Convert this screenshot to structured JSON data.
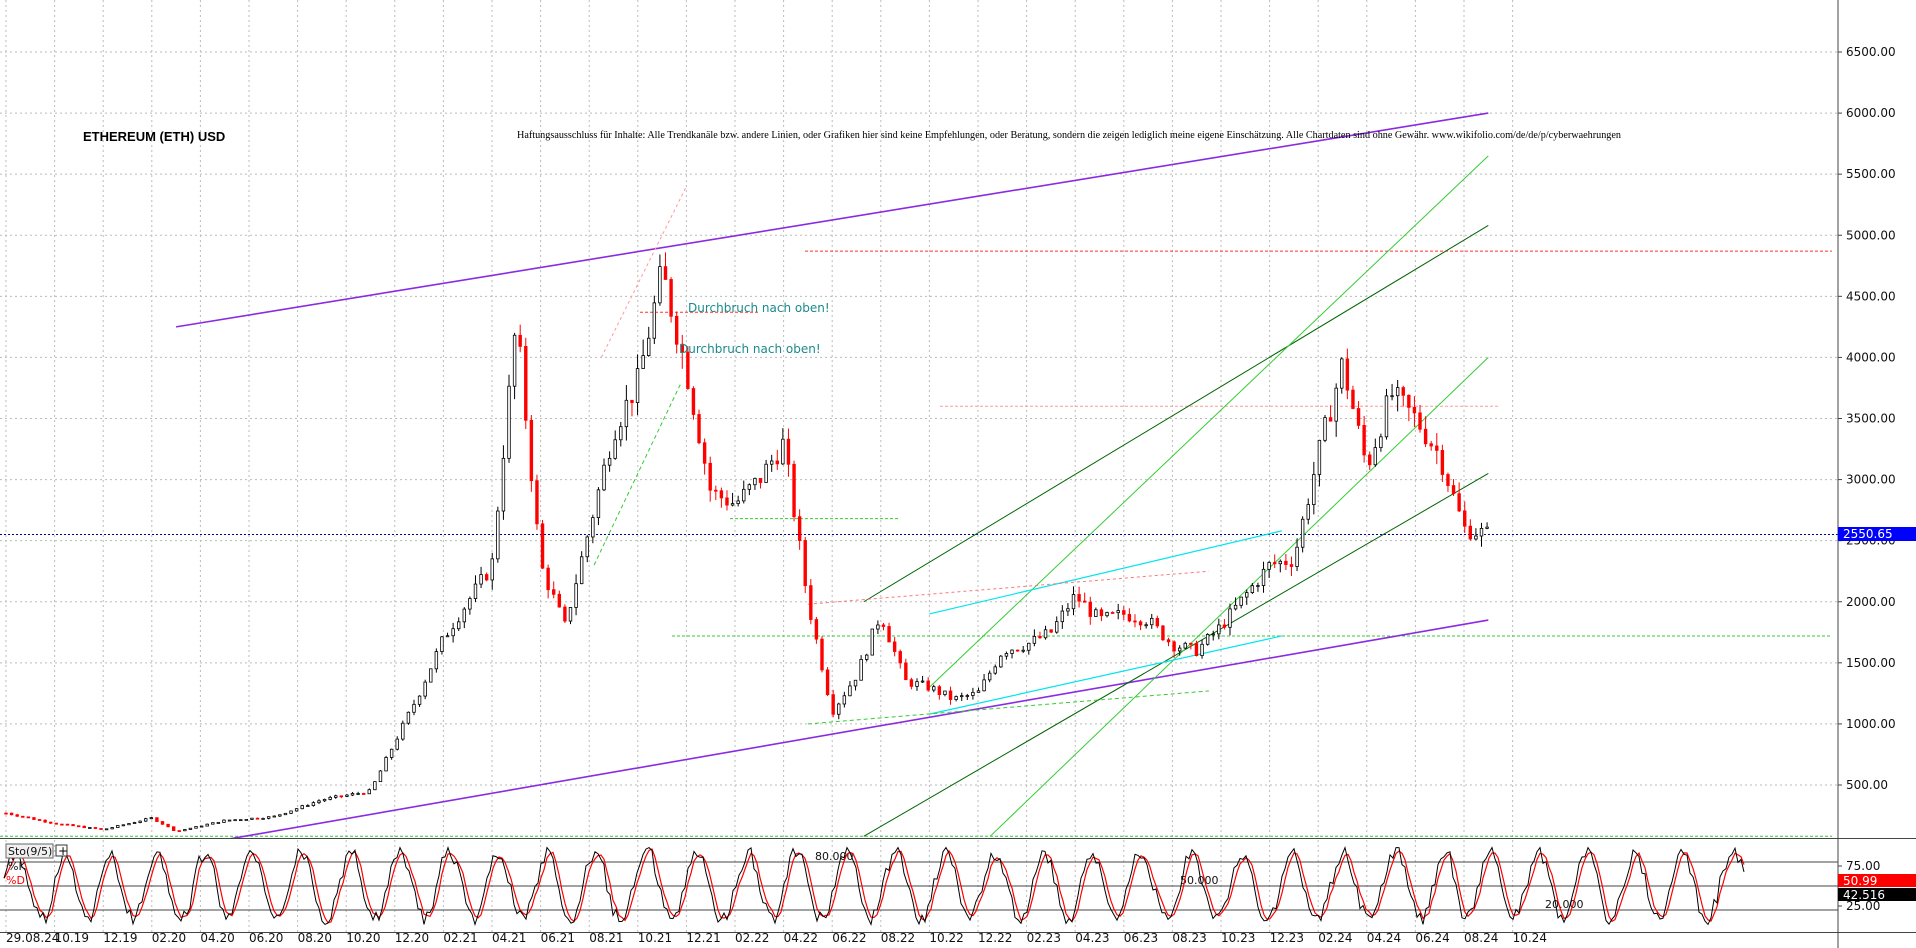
{
  "chart_data": {
    "type": "candlestick",
    "title": "ETHEREUM (ETH) USD",
    "disclaimer": "Haftungsausschluss für Inhalte: Alle Trendkanäle bzw. andere Linien, oder Grafiken hier sind keine Empfehlungen, oder Beratung, sondern die zeigen lediglich meine eigene Einschätzung. Alle Chartdaten sind ohne Gewähr. www.wikifolio.com/de/de/p/cyberwaehrungen",
    "price_axis": {
      "ylim": [
        0,
        6800
      ],
      "ticks": [
        "500.00",
        "1000.00",
        "1500.00",
        "2000.00",
        "2500.00",
        "3000.00",
        "3500.00",
        "4000.00",
        "4500.00",
        "5000.00",
        "5500.00",
        "6000.00",
        "6500.00"
      ],
      "current_price_label": "2550.65",
      "current_price": 2550.65,
      "side": "right"
    },
    "x_axis": {
      "ticks": [
        "29.08.24",
        "10.19",
        "12.19",
        "02.20",
        "04.20",
        "06.20",
        "08.20",
        "10.20",
        "12.20",
        "02.21",
        "04.21",
        "06.21",
        "08.21",
        "10.21",
        "12.21",
        "02.22",
        "04.22",
        "06.22",
        "08.22",
        "10.22",
        "12.22",
        "02.23",
        "04.23",
        "06.23",
        "08.23",
        "10.23",
        "12.23",
        "02.24",
        "04.24",
        "06.24",
        "08.24",
        "10.24"
      ]
    },
    "price_series": {
      "name": "ETH/USD",
      "x": [
        "2019-08",
        "2019-10",
        "2019-12",
        "2020-02",
        "2020-03",
        "2020-05",
        "2020-07",
        "2020-09",
        "2020-11",
        "2021-01",
        "2021-02",
        "2021-04",
        "2021-05",
        "2021-06",
        "2021-07",
        "2021-09",
        "2021-10",
        "2021-11",
        "2021-12",
        "2022-01",
        "2022-02",
        "2022-03",
        "2022-04",
        "2022-05",
        "2022-06",
        "2022-07",
        "2022-08",
        "2022-09",
        "2022-10",
        "2022-11",
        "2022-12",
        "2023-01",
        "2023-02",
        "2023-03",
        "2023-04",
        "2023-05",
        "2023-06",
        "2023-07",
        "2023-08",
        "2023-09",
        "2023-10",
        "2023-11",
        "2023-12",
        "2024-01",
        "2024-02",
        "2024-03",
        "2024-04",
        "2024-05",
        "2024-06",
        "2024-07",
        "2024-08",
        "2024-09"
      ],
      "values": [
        270,
        185,
        135,
        230,
        120,
        210,
        240,
        380,
        450,
        1250,
        1700,
        2300,
        4300,
        2300,
        1800,
        3400,
        3800,
        4700,
        3900,
        2900,
        2800,
        3000,
        3300,
        2000,
        1100,
        1400,
        1900,
        1350,
        1300,
        1200,
        1250,
        1600,
        1650,
        1750,
        2050,
        1850,
        1900,
        1850,
        1650,
        1600,
        1800,
        2050,
        2300,
        2350,
        3200,
        3950,
        3100,
        3700,
        3500,
        3200,
        2600,
        2550
      ]
    },
    "horizontal_levels": [
      {
        "value": 4870,
        "color": "#ff3333"
      },
      {
        "value": 4370,
        "color": "#ff3333"
      },
      {
        "value": 3600,
        "color": "#ff9999"
      },
      {
        "value": 2680,
        "color": "#33cc33"
      },
      {
        "value": 1720,
        "color": "#33cc33"
      },
      {
        "value": 80,
        "color": "#33cc33"
      }
    ],
    "annotations": [
      "Durchbruch nach oben!",
      "Durchbruch nach oben!"
    ],
    "stochastic": {
      "label": "Sto(9/5)",
      "k_label": "%K",
      "d_label": "%D",
      "ylim": [
        0,
        100
      ],
      "levels": [
        "80.000",
        "50.000",
        "20.000"
      ],
      "level_values": [
        80,
        50,
        20
      ],
      "right_ticks": [
        "75.00",
        "25.00"
      ],
      "k_value_label": "50.99",
      "d_value_label": "42.516",
      "colors": {
        "k": "#000000",
        "d": "#ff0000"
      }
    }
  },
  "colors": {
    "up_candle": "#000000",
    "down_candle": "#ff0000",
    "channel_purple": "#8a2be2",
    "trend_green": "#33cc33",
    "trend_darkgreen": "#006400",
    "trend_cyan": "#00e5ee",
    "price_marker_bg": "#0000ff"
  }
}
